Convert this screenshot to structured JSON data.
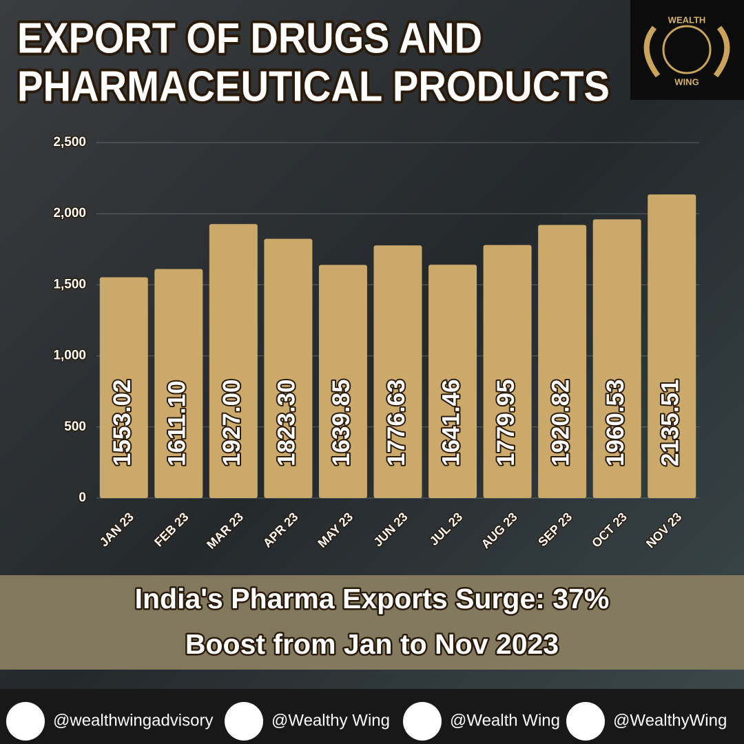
{
  "chart_data": {
    "type": "bar",
    "title": [
      "EXPORT OF DRUGS AND",
      "PHARMACEUTICAL PRODUCTS"
    ],
    "categories": [
      "JAN 23",
      "FEB 23",
      "MAR 23",
      "APR 23",
      "MAY 23",
      "JUN 23",
      "JUL 23",
      "AUG 23",
      "SEP 23",
      "OCT 23",
      "NOV 23"
    ],
    "values": [
      1553.02,
      1611.1,
      1927,
      1823.3,
      1639.85,
      1776.63,
      1641.46,
      1779.95,
      1920.82,
      1960.53,
      2135.51
    ],
    "value_labels": [
      "1553.02",
      "1611.10",
      "1927.00",
      "1823.30",
      "1639.85",
      "1776.63",
      "1641.46",
      "1779.95",
      "1920.82",
      "1960.53",
      "2135.51"
    ],
    "color": "#cba96a",
    "ylim": [
      0,
      2500
    ],
    "yticks": [
      0,
      500,
      {
        "value": 1000,
        "label": "1,000"
      },
      {
        "value": 1500,
        "label": "1,500"
      },
      {
        "value": 2000,
        "label": "2,000"
      },
      {
        "value": 2500,
        "label": "2,500"
      }
    ],
    "grid": true
  },
  "logo": {
    "top": "WEALTH",
    "bottom": "WING"
  },
  "caption": [
    "India's Pharma Exports Surge: 37%",
    "Boost from Jan to Nov 2023"
  ],
  "socials": [
    "@wealthwingadvisory",
    "@Wealthy Wing",
    "@Wealth Wing",
    "@WealthyWing"
  ]
}
